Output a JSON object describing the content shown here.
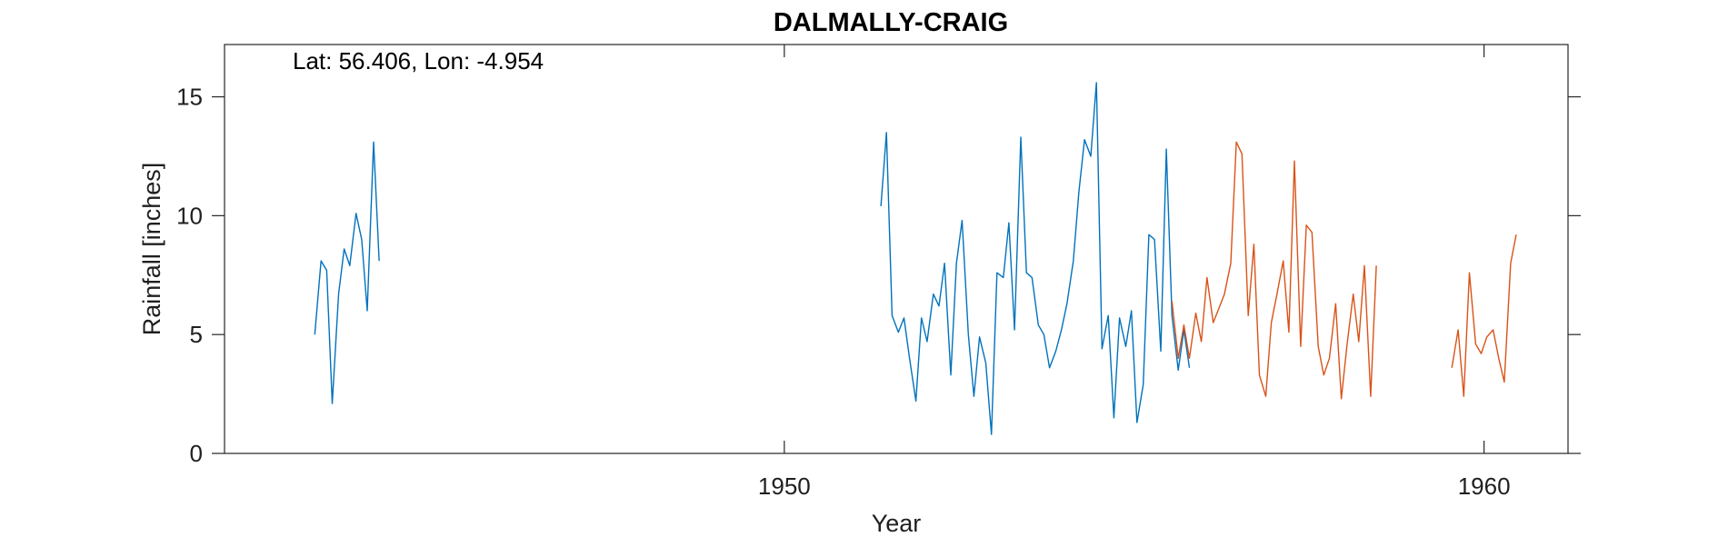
{
  "chart_data": {
    "type": "line",
    "title": "DALMALLY-CRAIG",
    "annotation": "Lat: 56.406, Lon: -4.954",
    "xlabel": "Year",
    "ylabel": "Rainfall [inches]",
    "xlim": [
      1942.0,
      1961.2
    ],
    "ylim": [
      0,
      17.2
    ],
    "xticks": [
      1950,
      1960
    ],
    "yticks": [
      0,
      5,
      10,
      15
    ],
    "grid": false,
    "legend": "none",
    "colors": {
      "blue": "#0072BD",
      "orange": "#D95319",
      "axis": "#262626"
    },
    "series": [
      {
        "color": "#0072BD",
        "segments": [
          [
            [
              1943.29,
              5.0
            ],
            [
              1943.38,
              8.1
            ],
            [
              1943.46,
              7.7
            ],
            [
              1943.54,
              2.1
            ],
            [
              1943.63,
              6.7
            ],
            [
              1943.71,
              8.6
            ],
            [
              1943.79,
              7.9
            ],
            [
              1943.88,
              10.1
            ],
            [
              1943.96,
              9.0
            ],
            [
              1944.04,
              6.0
            ],
            [
              1944.13,
              13.1
            ],
            [
              1944.21,
              8.1
            ]
          ],
          [
            [
              1951.38,
              10.4
            ],
            [
              1951.46,
              13.5
            ],
            [
              1951.54,
              5.8
            ],
            [
              1951.63,
              5.1
            ],
            [
              1951.71,
              5.7
            ],
            [
              1951.79,
              4.0
            ],
            [
              1951.88,
              2.2
            ],
            [
              1951.96,
              5.7
            ],
            [
              1952.04,
              4.7
            ],
            [
              1952.13,
              6.7
            ],
            [
              1952.21,
              6.2
            ],
            [
              1952.29,
              8.0
            ],
            [
              1952.38,
              3.3
            ],
            [
              1952.46,
              8.0
            ],
            [
              1952.54,
              9.8
            ],
            [
              1952.63,
              5.0
            ],
            [
              1952.71,
              2.4
            ],
            [
              1952.79,
              4.9
            ],
            [
              1952.88,
              3.8
            ],
            [
              1952.96,
              0.8
            ],
            [
              1953.04,
              7.6
            ],
            [
              1953.13,
              7.4
            ],
            [
              1953.21,
              9.7
            ],
            [
              1953.29,
              5.2
            ],
            [
              1953.38,
              13.3
            ],
            [
              1953.46,
              7.6
            ],
            [
              1953.54,
              7.4
            ],
            [
              1953.63,
              5.4
            ],
            [
              1953.71,
              5.0
            ],
            [
              1953.79,
              3.6
            ],
            [
              1953.88,
              4.3
            ],
            [
              1953.96,
              5.2
            ],
            [
              1954.04,
              6.3
            ],
            [
              1954.13,
              8.1
            ],
            [
              1954.21,
              11.0
            ],
            [
              1954.29,
              13.2
            ],
            [
              1954.38,
              12.5
            ],
            [
              1954.46,
              15.6
            ],
            [
              1954.54,
              4.4
            ],
            [
              1954.63,
              5.8
            ],
            [
              1954.71,
              1.5
            ],
            [
              1954.79,
              5.7
            ],
            [
              1954.88,
              4.5
            ],
            [
              1954.96,
              6.0
            ],
            [
              1955.04,
              1.3
            ],
            [
              1955.13,
              2.9
            ],
            [
              1955.21,
              9.2
            ],
            [
              1955.29,
              9.0
            ],
            [
              1955.38,
              4.3
            ],
            [
              1955.46,
              12.8
            ],
            [
              1955.54,
              5.8
            ],
            [
              1955.63,
              3.5
            ],
            [
              1955.71,
              5.2
            ],
            [
              1955.79,
              3.6
            ]
          ]
        ]
      },
      {
        "color": "#D95319",
        "segments": [
          [
            [
              1955.54,
              6.4
            ],
            [
              1955.63,
              4.0
            ],
            [
              1955.71,
              5.4
            ],
            [
              1955.79,
              4.0
            ],
            [
              1955.88,
              5.9
            ],
            [
              1955.96,
              4.7
            ],
            [
              1956.04,
              7.4
            ],
            [
              1956.13,
              5.5
            ],
            [
              1956.21,
              6.1
            ],
            [
              1956.29,
              6.7
            ],
            [
              1956.38,
              8.0
            ],
            [
              1956.46,
              13.1
            ],
            [
              1956.54,
              12.6
            ],
            [
              1956.63,
              5.8
            ],
            [
              1956.71,
              8.8
            ],
            [
              1956.79,
              3.3
            ],
            [
              1956.88,
              2.4
            ],
            [
              1956.96,
              5.5
            ],
            [
              1957.04,
              6.7
            ],
            [
              1957.13,
              8.1
            ],
            [
              1957.21,
              5.1
            ],
            [
              1957.29,
              12.3
            ],
            [
              1957.38,
              4.5
            ],
            [
              1957.46,
              9.6
            ],
            [
              1957.54,
              9.3
            ],
            [
              1957.63,
              4.5
            ],
            [
              1957.71,
              3.3
            ],
            [
              1957.79,
              4.0
            ],
            [
              1957.88,
              6.3
            ],
            [
              1957.96,
              2.3
            ],
            [
              1958.04,
              4.5
            ],
            [
              1958.13,
              6.7
            ],
            [
              1958.21,
              4.7
            ],
            [
              1958.29,
              7.9
            ],
            [
              1958.38,
              2.4
            ],
            [
              1958.46,
              7.9
            ]
          ],
          [
            [
              1959.54,
              3.6
            ],
            [
              1959.63,
              5.2
            ],
            [
              1959.71,
              2.4
            ],
            [
              1959.79,
              7.6
            ],
            [
              1959.88,
              4.6
            ],
            [
              1959.96,
              4.2
            ],
            [
              1960.04,
              4.9
            ],
            [
              1960.13,
              5.2
            ],
            [
              1960.21,
              4.0
            ],
            [
              1960.29,
              3.0
            ],
            [
              1960.38,
              8.0
            ],
            [
              1960.46,
              9.2
            ]
          ]
        ]
      }
    ]
  }
}
